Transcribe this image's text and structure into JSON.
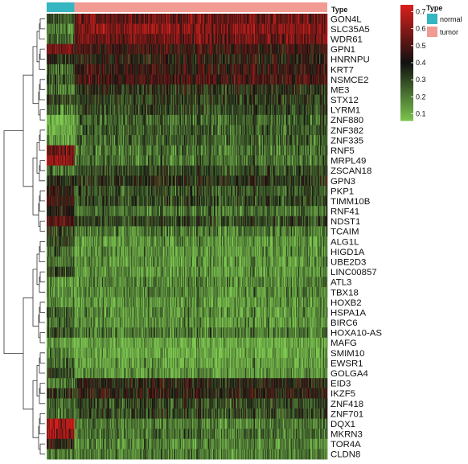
{
  "chart_data": {
    "type": "heatmap",
    "annotation": {
      "name": "Type",
      "groups": [
        {
          "label": "normal",
          "color": "#35b6c0",
          "count": 59
        },
        {
          "label": "tumor",
          "color": "#f29b93",
          "count": 535
        }
      ]
    },
    "rows": [
      "GON4L",
      "SLC35A5",
      "WDR61",
      "GPN1",
      "HNRNPU",
      "KRT7",
      "NSMCE2",
      "ME3",
      "STX12",
      "LYRM1",
      "ZNF880",
      "ZNF382",
      "ZNF335",
      "RNF5",
      "MRPL49",
      "ZSCAN18",
      "GPN3",
      "PKP1",
      "TIMM10B",
      "RNF41",
      "NDST1",
      "TCAIM",
      "ALG1L",
      "HIGD1A",
      "UBE2D3",
      "LINC00857",
      "ATL3",
      "TBX18",
      "HOXB2",
      "HSPA1A",
      "BIRC6",
      "HOXA10-AS",
      "MAFG",
      "SMIM10",
      "EWSR1",
      "GOLGA4",
      "EID3",
      "IKZF5",
      "ZNF418",
      "ZNF701",
      "DQX1",
      "MKRN3",
      "TOR4A",
      "CLDN8"
    ],
    "row_means": {
      "normal": [
        0.25,
        0.18,
        0.22,
        0.55,
        0.35,
        0.22,
        0.25,
        0.2,
        0.3,
        0.22,
        0.1,
        0.1,
        0.12,
        0.55,
        0.6,
        0.2,
        0.35,
        0.4,
        0.45,
        0.4,
        0.5,
        0.3,
        0.3,
        0.25,
        0.22,
        0.3,
        0.15,
        0.15,
        0.18,
        0.25,
        0.22,
        0.28,
        0.15,
        0.18,
        0.22,
        0.3,
        0.2,
        0.35,
        0.22,
        0.22,
        0.65,
        0.62,
        0.4,
        0.2
      ],
      "tumor": [
        0.55,
        0.6,
        0.55,
        0.45,
        0.4,
        0.45,
        0.48,
        0.35,
        0.32,
        0.3,
        0.25,
        0.25,
        0.25,
        0.22,
        0.22,
        0.3,
        0.35,
        0.28,
        0.3,
        0.22,
        0.3,
        0.2,
        0.15,
        0.15,
        0.15,
        0.15,
        0.18,
        0.18,
        0.15,
        0.15,
        0.15,
        0.2,
        0.1,
        0.1,
        0.12,
        0.15,
        0.38,
        0.4,
        0.3,
        0.3,
        0.2,
        0.22,
        0.18,
        0.2
      ]
    },
    "color_scale": {
      "low": "#7ec850",
      "mid": "#111111",
      "high": "#e0201c",
      "range": [
        0.05,
        0.75
      ],
      "ticks": [
        "0.7",
        "0.6",
        "0.5",
        "0.4",
        "0.3",
        "0.2",
        "0.1"
      ],
      "tick_values": [
        0.7,
        0.6,
        0.5,
        0.4,
        0.3,
        0.2,
        0.1
      ]
    },
    "clustering": "rows",
    "legend_placement": "right"
  }
}
